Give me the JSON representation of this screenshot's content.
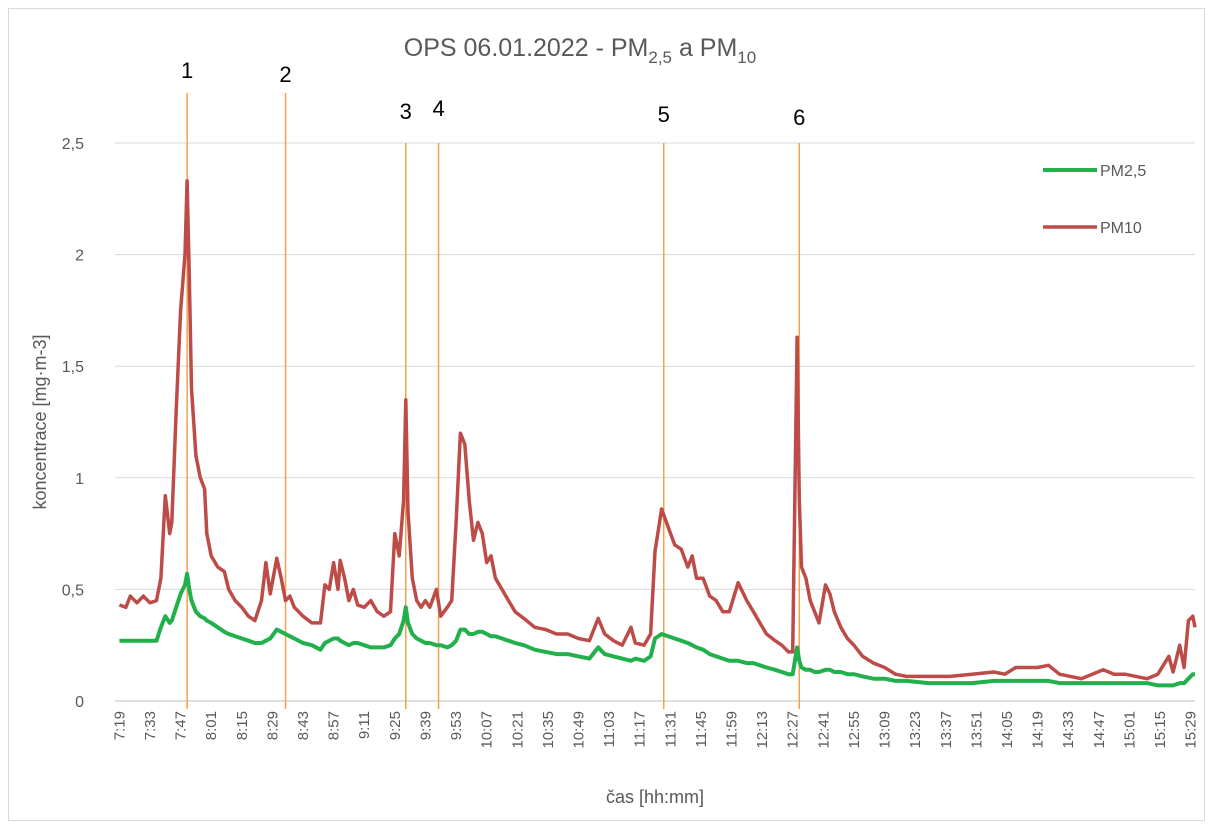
{
  "chart_data": {
    "type": "line",
    "title": [
      "OPS 06.01.2022 - PM",
      "2,5",
      " a PM",
      "10"
    ],
    "x_label": "čas [hh:mm]",
    "y_label": "koncentrace [mg·m-3]",
    "x": [
      "7:19",
      "7:22",
      "7:24",
      "7:27",
      "7:30",
      "7:33",
      "7:36",
      "7:38",
      "7:40",
      "7:42",
      "7:43",
      "7:45",
      "7:47",
      "7:49",
      "7:50",
      "7:51",
      "7:52",
      "7:54",
      "7:56",
      "7:58",
      "7:59",
      "8:01",
      "8:04",
      "8:07",
      "8:09",
      "8:12",
      "8:15",
      "8:18",
      "8:21",
      "8:24",
      "8:26",
      "8:28",
      "8:31",
      "8:33",
      "8:35",
      "8:37",
      "8:39",
      "8:43",
      "8:47",
      "8:51",
      "8:53",
      "8:55",
      "8:57",
      "8:59",
      "9:00",
      "9:02",
      "9:04",
      "9:06",
      "9:08",
      "9:11",
      "9:14",
      "9:17",
      "9:20",
      "9:23",
      "9:25",
      "9:27",
      "9:29",
      "9:30",
      "9:31",
      "9:33",
      "9:35",
      "9:37",
      "9:39",
      "9:41",
      "9:44",
      "9:46",
      "9:49",
      "9:51",
      "9:53",
      "9:55",
      "9:57",
      "9:59",
      "10:01",
      "10:03",
      "10:05",
      "10:07",
      "10:09",
      "10:11",
      "10:14",
      "10:17",
      "10:20",
      "10:24",
      "10:29",
      "10:34",
      "10:39",
      "10:44",
      "10:49",
      "10:54",
      "10:58",
      "11:01",
      "11:05",
      "11:09",
      "11:13",
      "11:15",
      "11:19",
      "11:22",
      "11:24",
      "11:27",
      "11:30",
      "11:33",
      "11:36",
      "11:39",
      "11:41",
      "11:43",
      "11:46",
      "11:49",
      "11:52",
      "11:55",
      "11:58",
      "12:02",
      "12:06",
      "12:09",
      "12:12",
      "12:15",
      "12:19",
      "12:22",
      "12:25",
      "12:27",
      "12:29",
      "12:30",
      "12:31",
      "12:33",
      "12:35",
      "12:37",
      "12:39",
      "12:42",
      "12:44",
      "12:46",
      "12:49",
      "12:52",
      "12:55",
      "12:59",
      "13:04",
      "13:09",
      "13:14",
      "13:19",
      "13:29",
      "13:39",
      "13:49",
      "13:59",
      "14:04",
      "14:09",
      "14:19",
      "14:24",
      "14:29",
      "14:39",
      "14:49",
      "14:54",
      "14:59",
      "15:09",
      "15:14",
      "15:19",
      "15:21",
      "15:24",
      "15:26",
      "15:28",
      "15:30",
      "15:31"
    ],
    "series": [
      {
        "name": "PM2,5",
        "color": "#21b04b",
        "width": 4,
        "values": [
          0.27,
          0.27,
          0.27,
          0.27,
          0.27,
          0.27,
          0.27,
          0.33,
          0.38,
          0.35,
          0.36,
          0.42,
          0.48,
          0.52,
          0.57,
          0.5,
          0.45,
          0.4,
          0.38,
          0.37,
          0.36,
          0.35,
          0.33,
          0.31,
          0.3,
          0.29,
          0.28,
          0.27,
          0.26,
          0.26,
          0.27,
          0.28,
          0.32,
          0.31,
          0.3,
          0.29,
          0.28,
          0.26,
          0.25,
          0.23,
          0.26,
          0.27,
          0.28,
          0.28,
          0.27,
          0.26,
          0.25,
          0.26,
          0.26,
          0.25,
          0.24,
          0.24,
          0.24,
          0.25,
          0.28,
          0.3,
          0.36,
          0.42,
          0.35,
          0.3,
          0.28,
          0.27,
          0.26,
          0.26,
          0.25,
          0.25,
          0.24,
          0.25,
          0.27,
          0.32,
          0.32,
          0.3,
          0.3,
          0.31,
          0.31,
          0.3,
          0.29,
          0.29,
          0.28,
          0.27,
          0.26,
          0.25,
          0.23,
          0.22,
          0.21,
          0.21,
          0.2,
          0.19,
          0.24,
          0.21,
          0.2,
          0.19,
          0.18,
          0.19,
          0.18,
          0.2,
          0.28,
          0.3,
          0.29,
          0.28,
          0.27,
          0.26,
          0.25,
          0.24,
          0.23,
          0.21,
          0.2,
          0.19,
          0.18,
          0.18,
          0.17,
          0.17,
          0.16,
          0.15,
          0.14,
          0.13,
          0.12,
          0.12,
          0.24,
          0.18,
          0.15,
          0.14,
          0.14,
          0.13,
          0.13,
          0.14,
          0.14,
          0.13,
          0.13,
          0.12,
          0.12,
          0.11,
          0.1,
          0.1,
          0.09,
          0.09,
          0.08,
          0.08,
          0.08,
          0.09,
          0.09,
          0.09,
          0.09,
          0.09,
          0.08,
          0.08,
          0.08,
          0.08,
          0.08,
          0.08,
          0.07,
          0.07,
          0.07,
          0.08,
          0.08,
          0.1,
          0.12,
          0.12
        ]
      },
      {
        "name": "PM10",
        "color": "#bd4b47",
        "width": 3.5,
        "values": [
          0.43,
          0.42,
          0.47,
          0.44,
          0.47,
          0.44,
          0.45,
          0.55,
          0.92,
          0.75,
          0.8,
          1.3,
          1.75,
          2,
          2.33,
          1.9,
          1.4,
          1.1,
          1,
          0.95,
          0.75,
          0.65,
          0.6,
          0.58,
          0.5,
          0.45,
          0.42,
          0.38,
          0.36,
          0.45,
          0.62,
          0.48,
          0.64,
          0.55,
          0.45,
          0.47,
          0.42,
          0.38,
          0.35,
          0.35,
          0.52,
          0.5,
          0.62,
          0.5,
          0.63,
          0.55,
          0.45,
          0.5,
          0.43,
          0.42,
          0.45,
          0.4,
          0.38,
          0.4,
          0.75,
          0.65,
          0.9,
          1.35,
          0.85,
          0.55,
          0.45,
          0.42,
          0.45,
          0.42,
          0.5,
          0.38,
          0.42,
          0.45,
          0.8,
          1.2,
          1.15,
          0.9,
          0.72,
          0.8,
          0.75,
          0.62,
          0.65,
          0.55,
          0.5,
          0.45,
          0.4,
          0.37,
          0.33,
          0.32,
          0.3,
          0.3,
          0.28,
          0.27,
          0.37,
          0.3,
          0.27,
          0.25,
          0.33,
          0.26,
          0.25,
          0.3,
          0.67,
          0.86,
          0.78,
          0.7,
          0.68,
          0.6,
          0.65,
          0.55,
          0.55,
          0.47,
          0.45,
          0.4,
          0.4,
          0.53,
          0.45,
          0.4,
          0.35,
          0.3,
          0.27,
          0.25,
          0.22,
          0.22,
          1.63,
          0.9,
          0.6,
          0.55,
          0.45,
          0.4,
          0.35,
          0.52,
          0.48,
          0.4,
          0.33,
          0.28,
          0.25,
          0.2,
          0.17,
          0.15,
          0.12,
          0.11,
          0.11,
          0.11,
          0.12,
          0.13,
          0.12,
          0.15,
          0.15,
          0.16,
          0.12,
          0.1,
          0.14,
          0.12,
          0.12,
          0.1,
          0.12,
          0.2,
          0.13,
          0.25,
          0.15,
          0.36,
          0.38,
          0.33
        ]
      }
    ],
    "xlim": [
      "7:17",
      "15:31"
    ],
    "xticks": [
      "7:19",
      "7:33",
      "7:47",
      "8:01",
      "8:15",
      "8:29",
      "8:43",
      "8:57",
      "9:11",
      "9:25",
      "9:39",
      "9:53",
      "10:07",
      "10:21",
      "10:35",
      "10:49",
      "11:03",
      "11:17",
      "11:31",
      "11:45",
      "11:59",
      "12:13",
      "12:27",
      "12:41",
      "12:55",
      "13:09",
      "13:23",
      "13:37",
      "13:51",
      "14:05",
      "14:19",
      "14:33",
      "14:47",
      "15:01",
      "15:15",
      "15:29"
    ],
    "ylim": [
      0,
      2.5
    ],
    "yticks": [
      0,
      {
        "value": 0.5,
        "label": "0,5"
      },
      1,
      {
        "value": 1.5,
        "label": "1,5"
      },
      2,
      {
        "value": 2.5,
        "label": "2,5"
      }
    ],
    "grid": true,
    "legend": "right",
    "annotations": [
      {
        "x": "7:50",
        "label": "1"
      },
      {
        "x": "8:35",
        "label": "2"
      },
      {
        "x": "9:30",
        "label": "3"
      },
      {
        "x": "9:45",
        "label": "4"
      },
      {
        "x": "11:28",
        "label": "5"
      },
      {
        "x": "12:30",
        "label": "6"
      }
    ],
    "annotation_color": "#f5a04a"
  }
}
